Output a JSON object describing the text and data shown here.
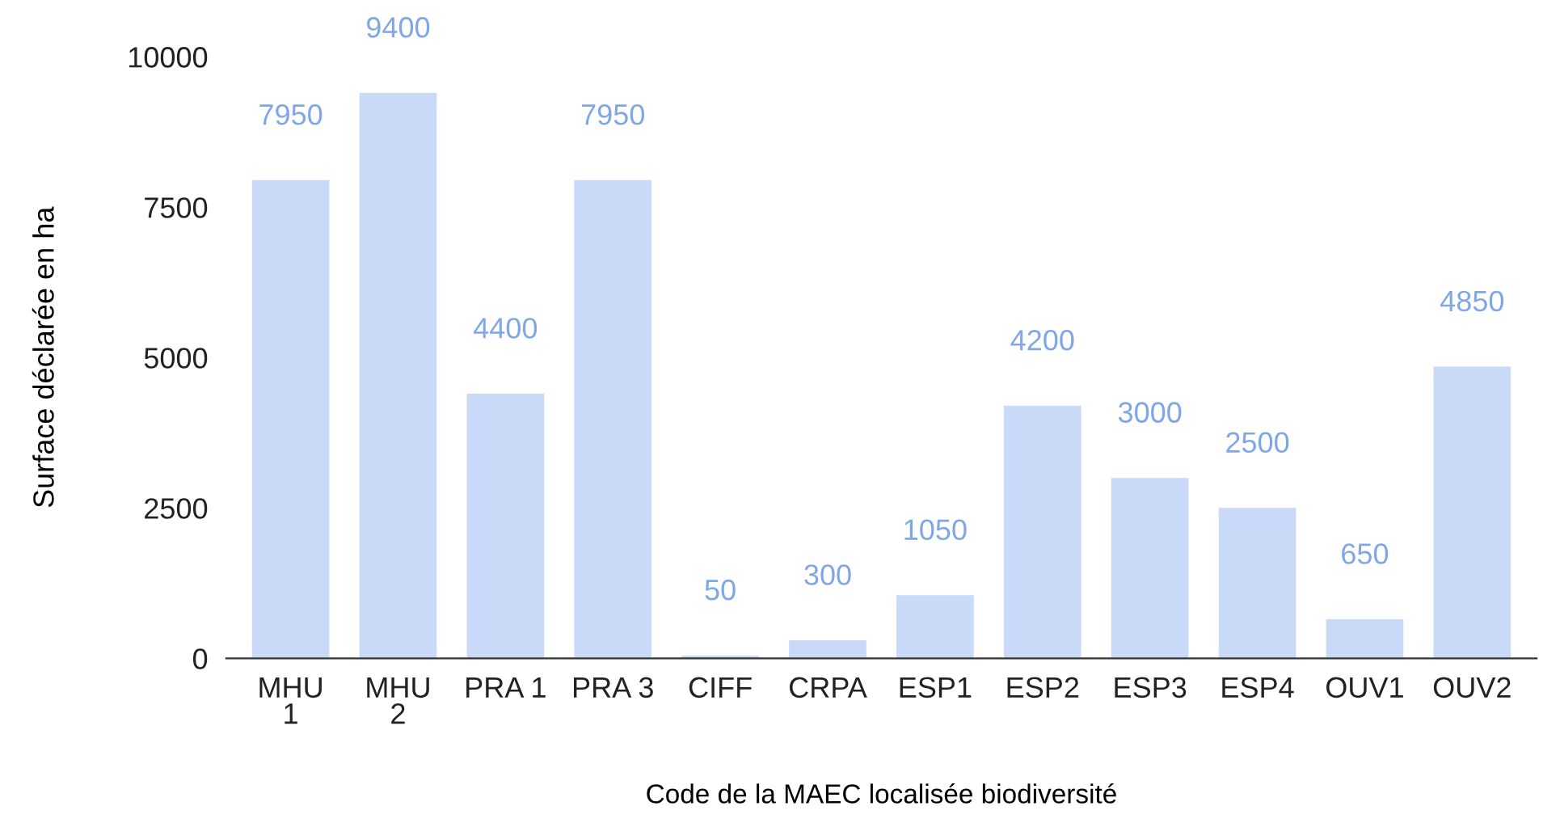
{
  "chart_data": {
    "type": "bar",
    "xlabel": "Code de la MAEC localisée biodiversité",
    "ylabel": "Surface déclarée en ha",
    "categories": [
      "MHU\n1",
      "MHU\n2",
      "PRA 1",
      "PRA 3",
      "CIFF",
      "CRPA",
      "ESP1",
      "ESP2",
      "ESP3",
      "ESP4",
      "OUV1",
      "OUV2"
    ],
    "values": [
      7950,
      9400,
      4400,
      7950,
      50,
      300,
      1050,
      4200,
      3000,
      2500,
      650,
      4850
    ],
    "color": "#c9d9f8",
    "ylim": [
      0,
      10000
    ],
    "yticks": [
      0,
      2500,
      5000,
      7500,
      10000
    ],
    "data_labels": true,
    "grid": false
  }
}
